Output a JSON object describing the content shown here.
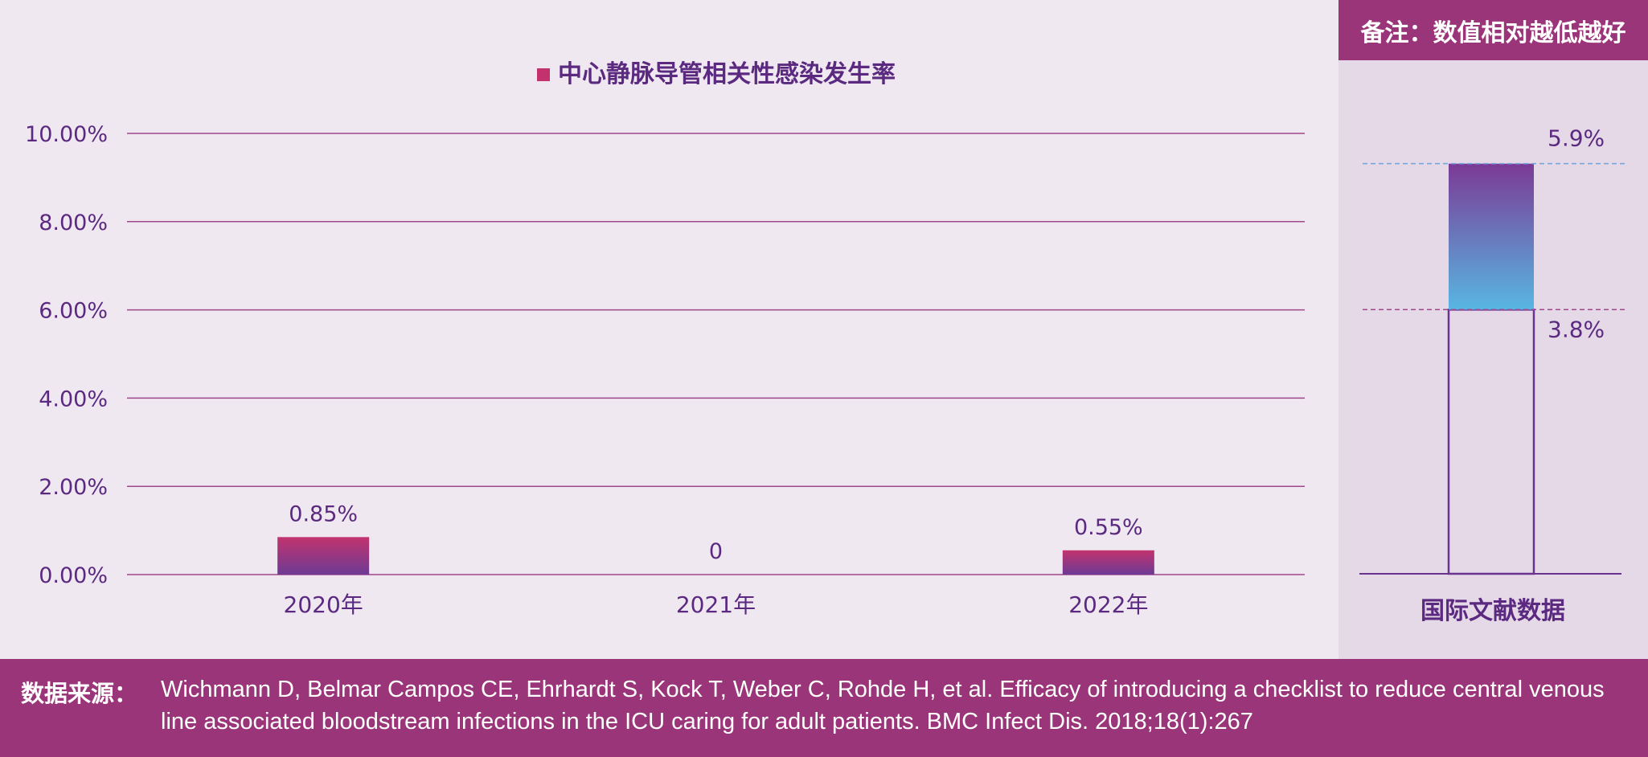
{
  "note": "备注：数值相对越低越好",
  "chart_data": [
    {
      "type": "bar",
      "legend": "中心静脉导管相关性感染发生率",
      "legend_position": "top",
      "categories": [
        "2020年",
        "2021年",
        "2022年"
      ],
      "values": [
        0.85,
        0,
        0.55
      ],
      "value_labels": [
        "0.85%",
        "0",
        "0.55%"
      ],
      "ylim": [
        0,
        10
      ],
      "yticks": [
        "0.00%",
        "2.00%",
        "4.00%",
        "6.00%",
        "8.00%",
        "10.00%"
      ],
      "grid": true,
      "colors": {
        "bar_top": "#c2336e",
        "bar_bottom": "#6d3a94",
        "grid": "#a0468a",
        "text": "#5b2a80"
      }
    },
    {
      "type": "bar",
      "category": "国际文献数据",
      "range": [
        3.8,
        5.9
      ],
      "range_labels": [
        "3.8%",
        "5.9%"
      ],
      "colors": {
        "fill_top": "#7b3a95",
        "fill_bottom": "#58b6e2",
        "outline": "#6a3390",
        "low_line": "#a0468a",
        "high_line": "#6fa5dc"
      }
    }
  ],
  "footer": {
    "label": "数据来源：",
    "citation": "Wichmann D, Belmar Campos CE, Ehrhardt S, Kock T, Weber C, Rohde H, et al. Efficacy of introducing a checklist to reduce central venous line associated bloodstream infections in the ICU caring for adult patients. BMC Infect Dis. 2018;18(1):267"
  }
}
